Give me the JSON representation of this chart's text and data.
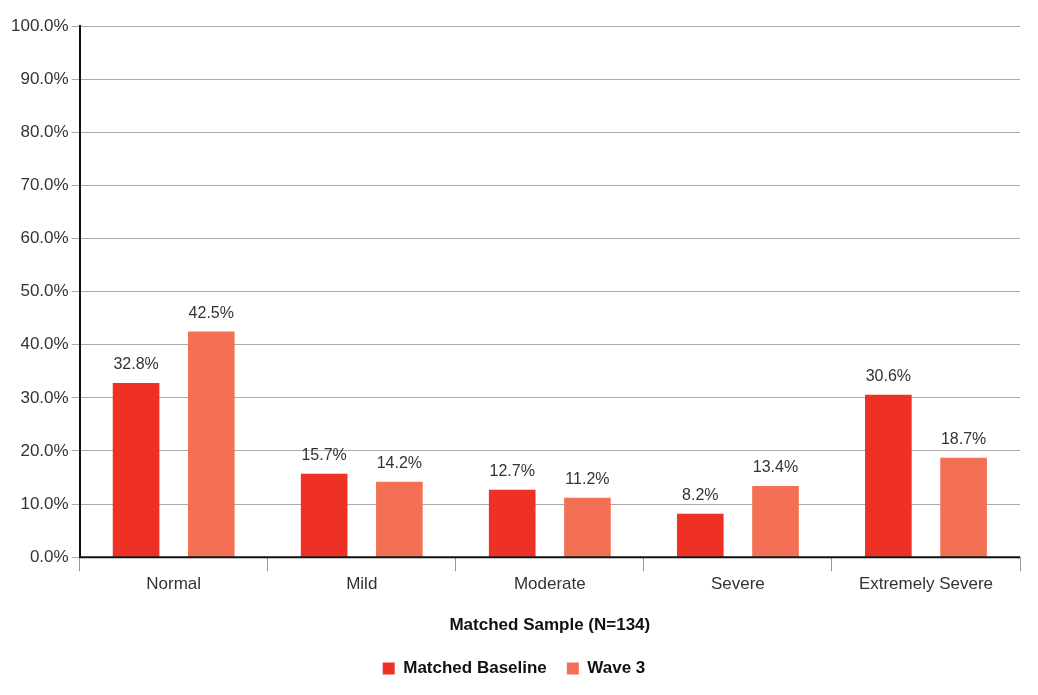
{
  "chart_data": {
    "type": "bar",
    "xlabel": "Matched Sample (N=134)",
    "categories": [
      "Normal",
      "Mild",
      "Moderate",
      "Severe",
      "Extremely Severe"
    ],
    "series": [
      {
        "name": "Matched Baseline",
        "color": "#ee3124",
        "values": [
          32.8,
          15.7,
          12.7,
          8.2,
          30.6
        ],
        "value_labels": [
          "32.8%",
          "15.7%",
          "12.7%",
          "8.2%",
          "30.6%"
        ]
      },
      {
        "name": "Wave 3",
        "color": "#f37055",
        "values": [
          42.5,
          14.2,
          11.2,
          13.4,
          18.7
        ],
        "value_labels": [
          "42.5%",
          "14.2%",
          "11.2%",
          "13.4%",
          "18.7%"
        ]
      }
    ],
    "ylim": [
      0,
      100
    ],
    "yticks": [
      {
        "value": 0,
        "label": "0.0%"
      },
      {
        "value": 10,
        "label": "10.0%"
      },
      {
        "value": 20,
        "label": "20.0%"
      },
      {
        "value": 30,
        "label": "30.0%"
      },
      {
        "value": 40,
        "label": "40.0%"
      },
      {
        "value": 50,
        "label": "50.0%"
      },
      {
        "value": 60,
        "label": "60.0%"
      },
      {
        "value": 70,
        "label": "70.0%"
      },
      {
        "value": 80,
        "label": "80.0%"
      },
      {
        "value": 90,
        "label": "90.0%"
      },
      {
        "value": 100,
        "label": "100.0%"
      }
    ],
    "grid": "y",
    "legend": "bottom"
  }
}
